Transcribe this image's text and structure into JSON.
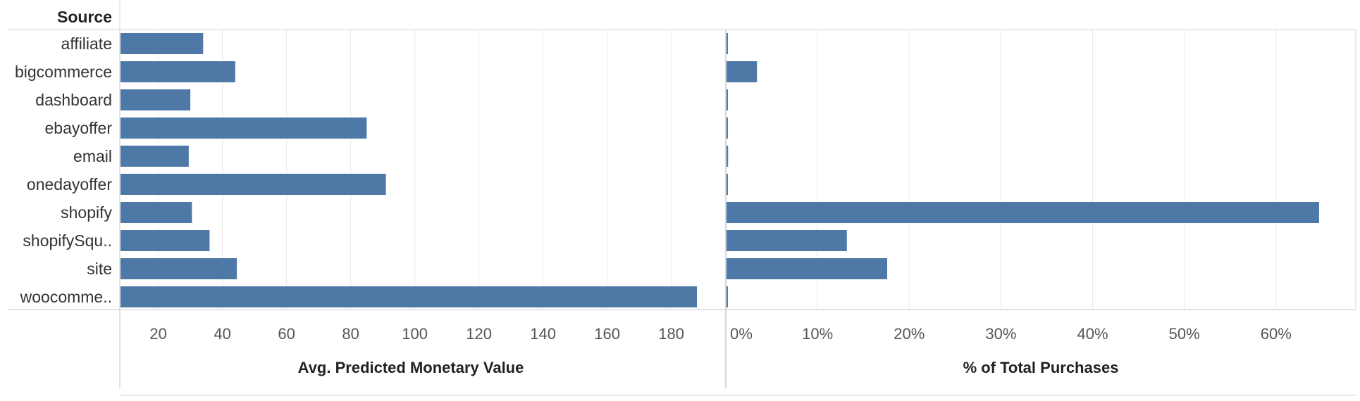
{
  "header": {
    "row_field": "Source"
  },
  "colors": {
    "bar": "#4e79a7",
    "grid": "#e9e9e9",
    "axis": "#c8c8c8"
  },
  "chart_data": [
    {
      "type": "bar",
      "orientation": "horizontal",
      "categories": [
        "affiliate",
        "bigcommerce",
        "dashboard",
        "ebayoffer",
        "email",
        "onedayoffer",
        "shopify",
        "shopifySqu..",
        "site",
        "woocomme.."
      ],
      "values": [
        34,
        44,
        30,
        85,
        29.5,
        91,
        30.5,
        36,
        44.5,
        188
      ],
      "xlabel": "Avg. Predicted Monetary Value",
      "xlim": [
        8,
        197
      ],
      "ticks": [
        20,
        40,
        60,
        80,
        100,
        120,
        140,
        160,
        180
      ],
      "tick_labels": [
        "20",
        "40",
        "60",
        "80",
        "100",
        "120",
        "140",
        "160",
        "180"
      ],
      "grid": true
    },
    {
      "type": "bar",
      "orientation": "horizontal",
      "categories": [
        "affiliate",
        "bigcommerce",
        "dashboard",
        "ebayoffer",
        "email",
        "onedayoffer",
        "shopify",
        "shopifySqu..",
        "site",
        "woocomme.."
      ],
      "values": [
        0.1,
        3.4,
        0.1,
        0.1,
        0.25,
        0.1,
        64.7,
        13.2,
        17.6,
        0.1
      ],
      "unit": "%",
      "xlabel": "% of Total Purchases",
      "xlim": [
        0,
        68.7
      ],
      "ticks": [
        0,
        10,
        20,
        30,
        40,
        50,
        60
      ],
      "tick_labels": [
        "0%",
        "10%",
        "20%",
        "30%",
        "40%",
        "50%",
        "60%"
      ],
      "grid": true
    }
  ]
}
